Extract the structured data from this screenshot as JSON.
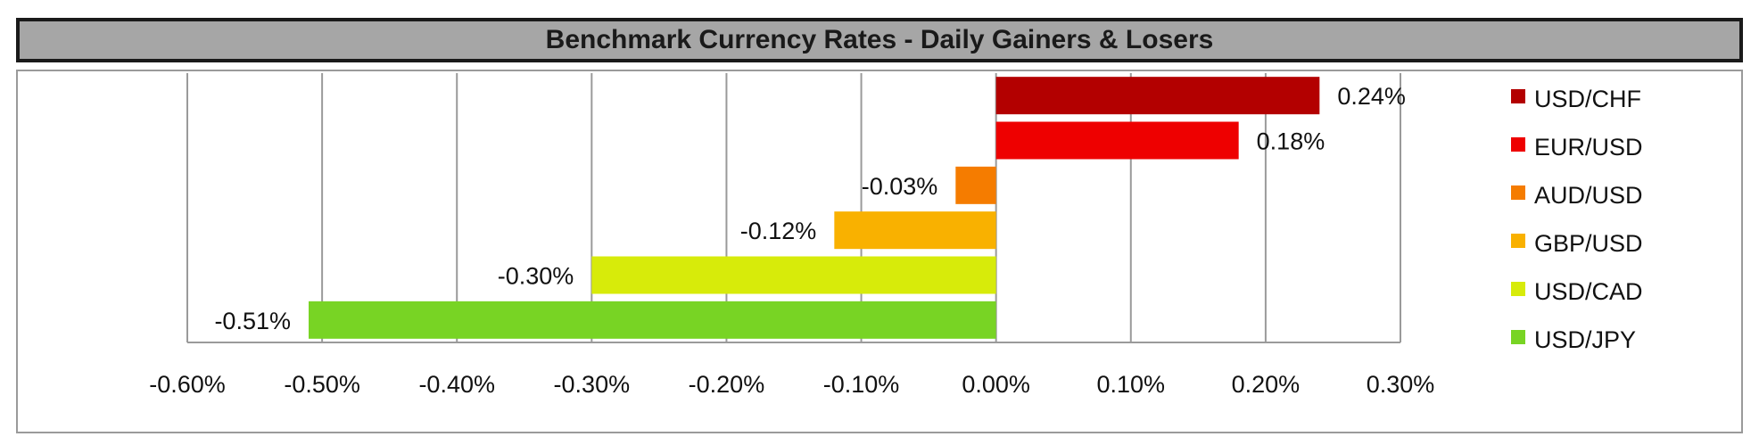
{
  "chart_data": {
    "type": "bar",
    "orientation": "horizontal",
    "title": "Benchmark Currency Rates - Daily Gainers & Losers",
    "categories": [
      "USD/CHF",
      "EUR/USD",
      "AUD/USD",
      "GBP/USD",
      "USD/CAD",
      "USD/JPY"
    ],
    "values": [
      0.24,
      0.18,
      -0.03,
      -0.12,
      -0.3,
      -0.51
    ],
    "data_labels": [
      "0.24%",
      "0.18%",
      "-0.03%",
      "-0.12%",
      "-0.30%",
      "-0.51%"
    ],
    "colors": [
      "#b30000",
      "#ee0000",
      "#f57c00",
      "#f9b100",
      "#d7eb0a",
      "#78d424"
    ],
    "xlim": [
      -0.6,
      0.3
    ],
    "xticks": [
      -0.6,
      -0.5,
      -0.4,
      -0.3,
      -0.2,
      -0.1,
      0.0,
      0.1,
      0.2,
      0.3
    ],
    "xtick_labels": [
      "-0.60%",
      "-0.50%",
      "-0.40%",
      "-0.30%",
      "-0.20%",
      "-0.10%",
      "0.00%",
      "0.10%",
      "0.20%",
      "0.30%"
    ],
    "grid": "vertical",
    "legend_position": "right",
    "legend": [
      {
        "label": "USD/CHF",
        "color": "#b30000"
      },
      {
        "label": "EUR/USD",
        "color": "#ee0000"
      },
      {
        "label": "AUD/USD",
        "color": "#f57c00"
      },
      {
        "label": "GBP/USD",
        "color": "#f9b100"
      },
      {
        "label": "USD/CAD",
        "color": "#d7eb0a"
      },
      {
        "label": "USD/JPY",
        "color": "#78d424"
      }
    ]
  }
}
